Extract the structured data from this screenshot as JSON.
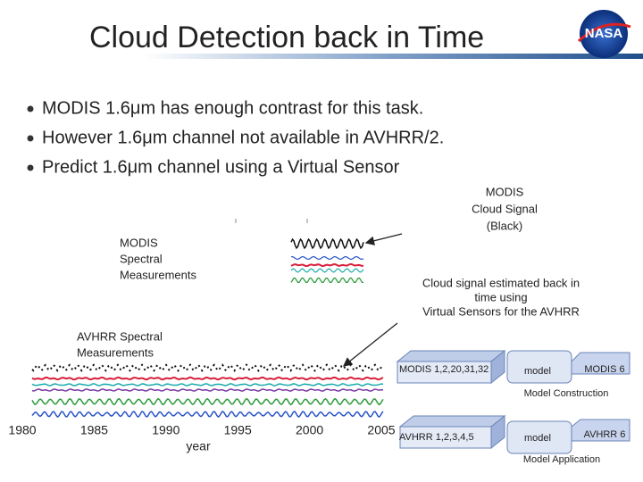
{
  "title": "Cloud Detection back in Time",
  "logo": "NASA",
  "bullets": [
    "MODIS 1.6μm has enough contrast for this task.",
    "However 1.6μm channel not available in AVHRR/2.",
    "Predict 1.6μm channel using a Virtual Sensor"
  ],
  "callouts": {
    "modis_cloud": [
      "MODIS",
      "Cloud Signal",
      "(Black)"
    ],
    "modis_spectral": [
      "MODIS",
      "Spectral",
      "Measurements"
    ],
    "estimated": [
      "Cloud signal estimated back in",
      "time using",
      "Virtual Sensors for the AVHRR"
    ],
    "avhrr_spectral": [
      "AVHRR Spectral",
      "Measurements"
    ]
  },
  "construction": {
    "input": "MODIS 1,2,20,31,32",
    "model": "model",
    "output": "MODIS 6",
    "caption": "Model Construction"
  },
  "application": {
    "input": "AVHRR 1,2,3,4,5",
    "model": "model",
    "output": "AVHRR 6",
    "caption": "Model Application"
  },
  "timeline": {
    "years": [
      "1980",
      "1985",
      "1990",
      "1995",
      "2000",
      "2005"
    ],
    "label": "year"
  }
}
